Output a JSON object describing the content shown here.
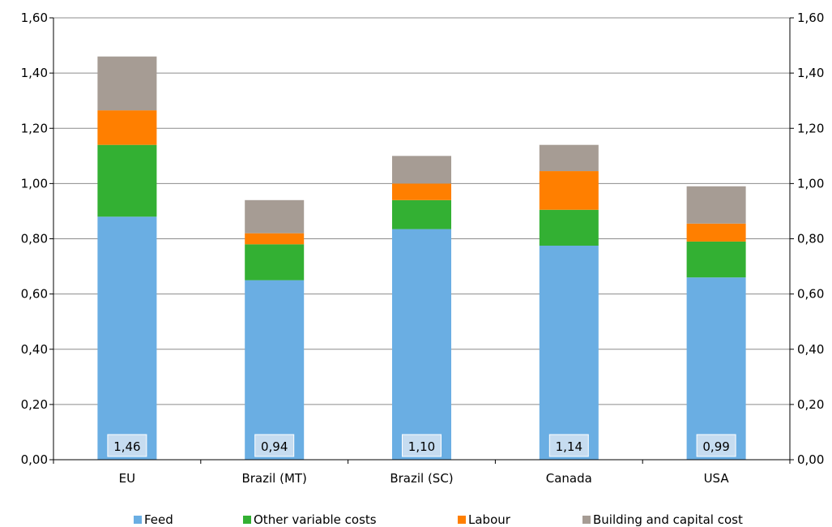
{
  "chart_data": {
    "type": "bar",
    "stacked": true,
    "categories": [
      "EU",
      "Brazil (MT)",
      "Brazil (SC)",
      "Canada",
      "USA"
    ],
    "series": [
      {
        "name": "Feed",
        "color": "#6aaee3",
        "values": [
          0.88,
          0.65,
          0.835,
          0.775,
          0.66
        ]
      },
      {
        "name": "Other variable costs",
        "color": "#33b033",
        "values": [
          0.26,
          0.13,
          0.105,
          0.13,
          0.13
        ]
      },
      {
        "name": "Labour",
        "color": "#ff7f00",
        "values": [
          0.125,
          0.04,
          0.06,
          0.14,
          0.065
        ]
      },
      {
        "name": "Building and capital cost",
        "color": "#a69c94",
        "values": [
          0.195,
          0.12,
          0.1,
          0.095,
          0.135
        ]
      }
    ],
    "totals": [
      "1,46",
      "0,94",
      "1,10",
      "1,14",
      "0,99"
    ],
    "y_ticks": [
      "0,00",
      "0,20",
      "0,40",
      "0,60",
      "0,80",
      "1,00",
      "1,20",
      "1,40",
      "1,60"
    ],
    "ylim": [
      0,
      1.6
    ],
    "grid": true,
    "legend_position": "bottom",
    "title": "",
    "xlabel": "",
    "ylabel": ""
  }
}
